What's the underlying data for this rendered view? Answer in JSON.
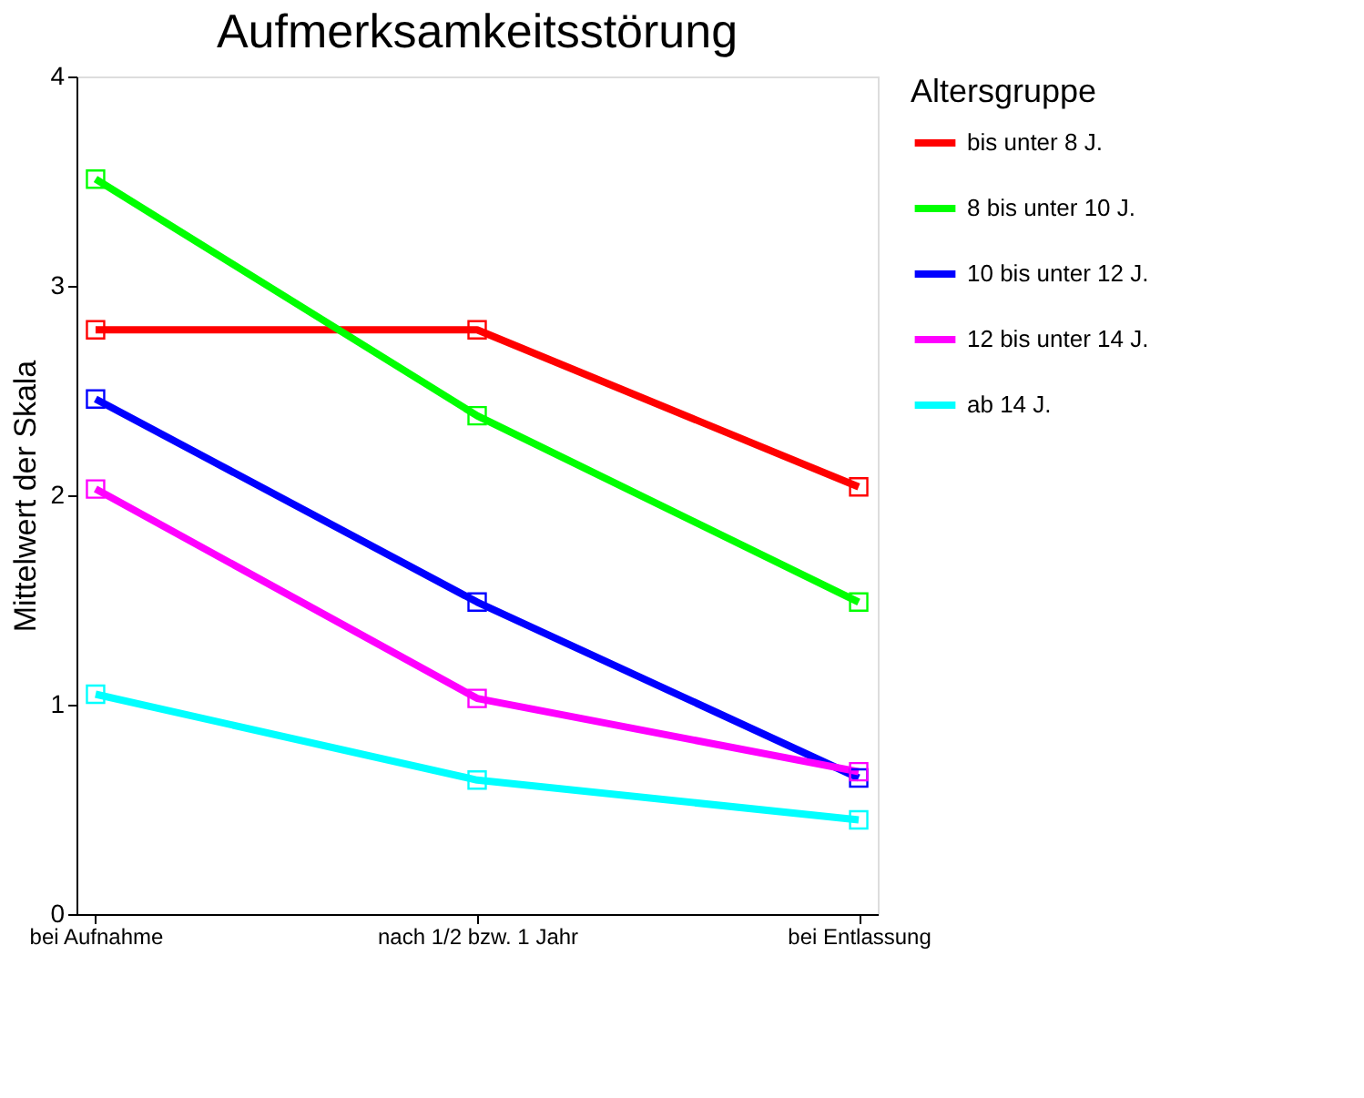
{
  "chart_data": {
    "type": "line",
    "title": "Aufmerksamkeitsstörung",
    "ylabel": "Mittelwert der Skala",
    "legend_title": "Altersgruppe",
    "categories": [
      "bei Aufnahme",
      "nach 1/2 bzw. 1 Jahr",
      "bei Entlassung"
    ],
    "series": [
      {
        "name": "bis unter 8 J.",
        "color": "#ff0000",
        "values": [
          2.79,
          2.79,
          2.04
        ]
      },
      {
        "name": "8 bis unter 10 J.",
        "color": "#00ff00",
        "values": [
          3.51,
          2.38,
          1.49
        ]
      },
      {
        "name": "10 bis unter 12 J.",
        "color": "#0000ff",
        "values": [
          2.46,
          1.49,
          0.65
        ]
      },
      {
        "name": "12 bis unter 14 J.",
        "color": "#ff00ff",
        "values": [
          2.03,
          1.03,
          0.68
        ]
      },
      {
        "name": "ab 14 J.",
        "color": "#00ffff",
        "values": [
          1.05,
          0.64,
          0.45
        ]
      }
    ],
    "ylim": [
      0,
      4
    ],
    "yticks": [
      0,
      1,
      2,
      3,
      4
    ],
    "grid": false,
    "legend": "right",
    "marker": "square",
    "line_style": "solid"
  }
}
